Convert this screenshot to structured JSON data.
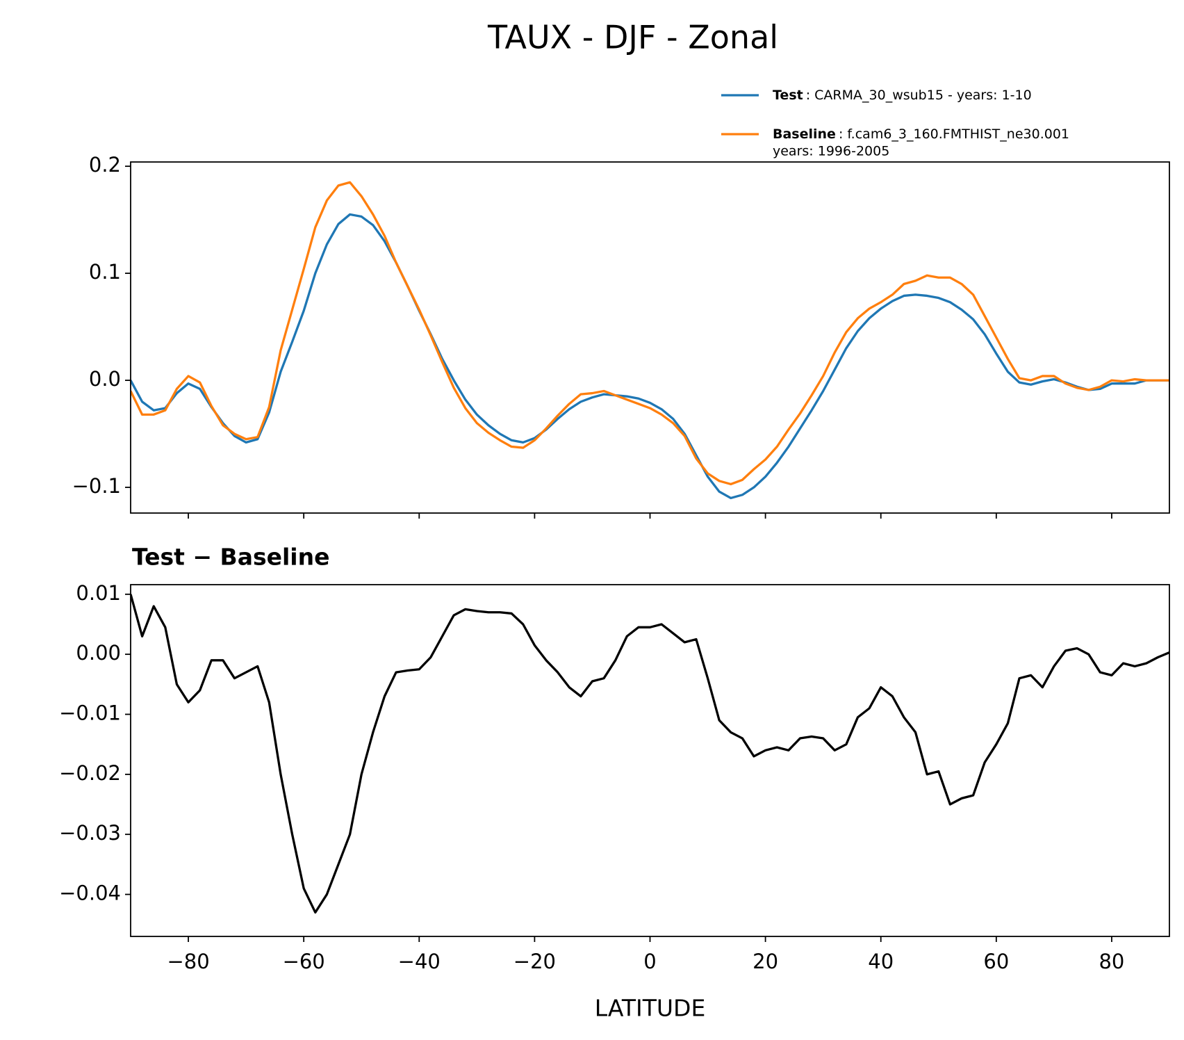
{
  "chart_data": [
    {
      "type": "line",
      "title": "TAUX - DJF - Zonal",
      "x": [
        -90,
        -88,
        -86,
        -84,
        -82,
        -80,
        -78,
        -76,
        -74,
        -72,
        -70,
        -68,
        -66,
        -64,
        -62,
        -60,
        -58,
        -56,
        -54,
        -52,
        -50,
        -48,
        -46,
        -44,
        -42,
        -40,
        -38,
        -36,
        -34,
        -32,
        -30,
        -28,
        -26,
        -24,
        -22,
        -20,
        -18,
        -16,
        -14,
        -12,
        -10,
        -8,
        -6,
        -4,
        -2,
        0,
        2,
        4,
        6,
        8,
        10,
        12,
        14,
        16,
        18,
        20,
        22,
        24,
        26,
        28,
        30,
        32,
        34,
        36,
        38,
        40,
        42,
        44,
        46,
        48,
        50,
        52,
        54,
        56,
        58,
        60,
        62,
        64,
        66,
        68,
        70,
        72,
        74,
        76,
        78,
        80,
        82,
        84,
        86,
        88,
        90
      ],
      "series": [
        {
          "name": "Test",
          "label_lines": [
            ": CARMA_30_wsub15 - years: 1-10"
          ],
          "color": "#1f77b4",
          "values": [
            0,
            -0.02,
            -0.028,
            -0.026,
            -0.012,
            -0.003,
            -0.008,
            -0.025,
            -0.04,
            -0.052,
            -0.058,
            -0.055,
            -0.03,
            0.008,
            0.036,
            0.065,
            0.1,
            0.127,
            0.146,
            0.155,
            0.153,
            0.145,
            0.13,
            0.11,
            0.088,
            0.065,
            0.043,
            0.02,
            0.0,
            -0.018,
            -0.032,
            -0.042,
            -0.05,
            -0.056,
            -0.058,
            -0.054,
            -0.046,
            -0.036,
            -0.027,
            -0.02,
            -0.016,
            -0.013,
            -0.014,
            -0.015,
            -0.017,
            -0.021,
            -0.027,
            -0.036,
            -0.05,
            -0.07,
            -0.09,
            -0.104,
            -0.11,
            -0.107,
            -0.1,
            -0.09,
            -0.077,
            -0.062,
            -0.045,
            -0.028,
            -0.01,
            0.01,
            0.03,
            0.046,
            0.058,
            0.067,
            0.074,
            0.079,
            0.08,
            0.079,
            0.077,
            0.073,
            0.066,
            0.057,
            0.043,
            0.025,
            0.008,
            -0.002,
            -0.004,
            -0.001,
            0.001,
            -0.002,
            -0.006,
            -0.009,
            -0.008,
            -0.003,
            -0.003,
            -0.003,
            0,
            0,
            0
          ]
        },
        {
          "name": "Baseline",
          "label_lines": [
            ": f.cam6_3_160.FMTHIST_ne30.001",
            "years: 1996-2005"
          ],
          "color": "#ff7f0e",
          "values": [
            -0.01,
            -0.032,
            -0.032,
            -0.028,
            -0.008,
            0.004,
            -0.002,
            -0.024,
            -0.042,
            -0.05,
            -0.055,
            -0.053,
            -0.025,
            0.028,
            0.066,
            0.104,
            0.143,
            0.168,
            0.182,
            0.185,
            0.172,
            0.155,
            0.135,
            0.11,
            0.088,
            0.066,
            0.042,
            0.017,
            -0.007,
            -0.026,
            -0.04,
            -0.049,
            -0.056,
            -0.062,
            -0.063,
            -0.056,
            -0.045,
            -0.033,
            -0.022,
            -0.013,
            -0.012,
            -0.01,
            -0.014,
            -0.018,
            -0.022,
            -0.026,
            -0.032,
            -0.04,
            -0.052,
            -0.073,
            -0.087,
            -0.094,
            -0.097,
            -0.093,
            -0.083,
            -0.074,
            -0.062,
            -0.046,
            -0.031,
            -0.014,
            0.004,
            0.026,
            0.045,
            0.058,
            0.067,
            0.073,
            0.08,
            0.09,
            0.093,
            0.098,
            0.096,
            0.096,
            0.09,
            0.08,
            0.06,
            0.04,
            0.02,
            0.002,
            0,
            0.004,
            0.004,
            -0.003,
            -0.007,
            -0.009,
            -0.006,
            0,
            -0.001,
            0.001,
            0,
            0,
            0
          ]
        }
      ],
      "xlim": [
        -90,
        90
      ],
      "xticks": [
        -80,
        -60,
        -40,
        -20,
        0,
        20,
        40,
        60,
        80
      ],
      "xtick_labels": false,
      "ylim": [
        -0.124,
        0.204
      ],
      "yticks": [
        {
          "value": -0.1,
          "label": "−0.1"
        },
        {
          "value": 0,
          "label": "0.0"
        },
        0.1,
        0.2
      ]
    },
    {
      "type": "line",
      "title": "Test − Baseline",
      "xlabel": "LATITUDE",
      "x": [
        -90,
        -88,
        -86,
        -84,
        -82,
        -80,
        -78,
        -76,
        -74,
        -72,
        -70,
        -68,
        -66,
        -64,
        -62,
        -60,
        -58,
        -56,
        -54,
        -52,
        -50,
        -48,
        -46,
        -44,
        -42,
        -40,
        -38,
        -36,
        -34,
        -32,
        -30,
        -28,
        -26,
        -24,
        -22,
        -20,
        -18,
        -16,
        -14,
        -12,
        -10,
        -8,
        -6,
        -4,
        -2,
        0,
        2,
        4,
        6,
        8,
        10,
        12,
        14,
        16,
        18,
        20,
        22,
        24,
        26,
        28,
        30,
        32,
        34,
        36,
        38,
        40,
        42,
        44,
        46,
        48,
        50,
        52,
        54,
        56,
        58,
        60,
        62,
        64,
        66,
        68,
        70,
        72,
        74,
        76,
        78,
        80,
        82,
        84,
        86,
        88,
        90
      ],
      "series": [
        {
          "color": "#000000",
          "values": [
            0.01,
            0.003,
            0.008,
            0.0045,
            -0.005,
            -0.008,
            -0.006,
            -0.001,
            -0.001,
            -0.004,
            -0.003,
            -0.002,
            -0.008,
            -0.02,
            -0.03,
            -0.039,
            -0.043,
            -0.04,
            -0.035,
            -0.03,
            -0.02,
            -0.013,
            -0.007,
            -0.003,
            -0.0027,
            -0.0025,
            -0.0005,
            0.003,
            0.0065,
            0.0075,
            0.0072,
            0.007,
            0.007,
            0.0068,
            0.005,
            0.0015,
            -0.001,
            -0.003,
            -0.0055,
            -0.007,
            -0.0045,
            -0.004,
            -0.001,
            0.003,
            0.0045,
            0.0045,
            0.005,
            0.0035,
            0.002,
            0.0025,
            -0.004,
            -0.011,
            -0.013,
            -0.014,
            -0.017,
            -0.016,
            -0.0155,
            -0.016,
            -0.014,
            -0.0137,
            -0.014,
            -0.016,
            -0.015,
            -0.0105,
            -0.009,
            -0.0055,
            -0.007,
            -0.0105,
            -0.013,
            -0.02,
            -0.0195,
            -0.025,
            -0.024,
            -0.0235,
            -0.018,
            -0.015,
            -0.0115,
            -0.004,
            -0.0035,
            -0.0055,
            -0.002,
            0.0006,
            0.001,
            0,
            -0.003,
            -0.0035,
            -0.0015,
            -0.002,
            -0.0015,
            -0.0005,
            0.0003
          ]
        }
      ],
      "xlim": [
        -90,
        90
      ],
      "xticks": [
        {
          "value": -80,
          "label": "−80"
        },
        {
          "value": -60,
          "label": "−60"
        },
        {
          "value": -40,
          "label": "−40"
        },
        {
          "value": -20,
          "label": "−20"
        },
        0,
        20,
        40,
        60,
        80
      ],
      "ylim": [
        -0.047,
        0.0116
      ],
      "yticks": [
        {
          "value": -0.04,
          "label": "−0.04"
        },
        {
          "value": -0.03,
          "label": "−0.03"
        },
        {
          "value": -0.02,
          "label": "−0.02"
        },
        {
          "value": -0.01,
          "label": "−0.01"
        },
        {
          "value": 0,
          "label": "0.00"
        },
        0.01
      ]
    }
  ]
}
